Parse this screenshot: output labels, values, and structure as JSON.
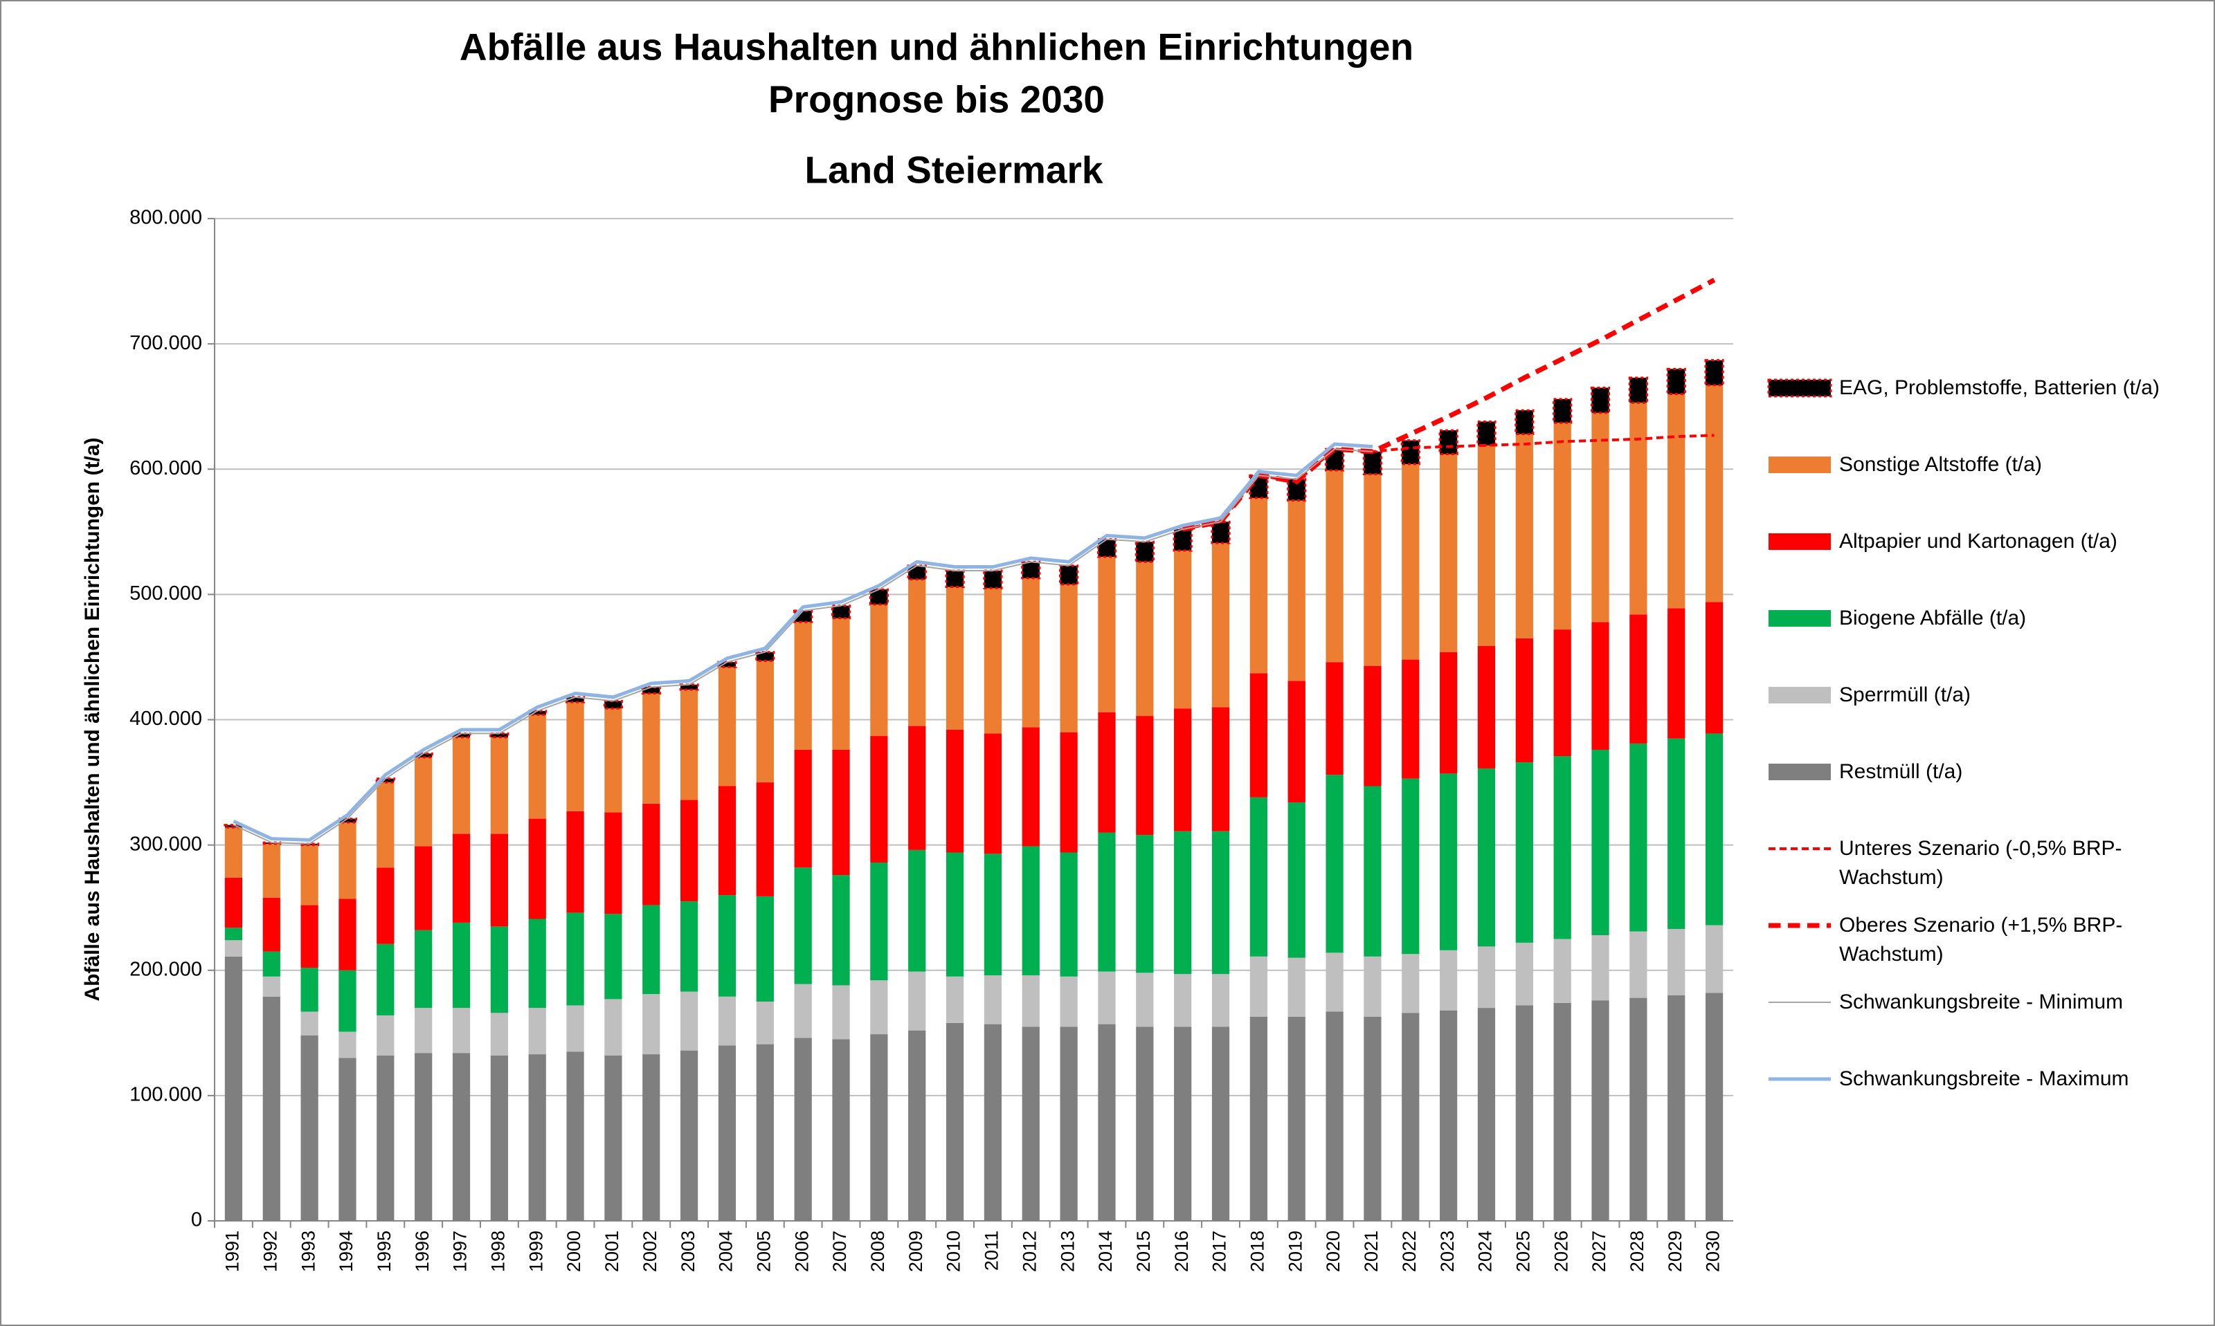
{
  "chart_data": {
    "type": "bar",
    "title": "Abfälle aus Haushalten und ähnlichen Einrichtungen",
    "subtitle": "Prognose bis 2030",
    "region": "Land Steiermark",
    "y_label": "Abfälle aus Haushalten und ähnlichen Einrichtungen (t/a)",
    "categories": [
      "1991",
      "1992",
      "1993",
      "1994",
      "1995",
      "1996",
      "1997",
      "1998",
      "1999",
      "2000",
      "2001",
      "2002",
      "2003",
      "2004",
      "2005",
      "2006",
      "2007",
      "2008",
      "2009",
      "2010",
      "2011",
      "2012",
      "2013",
      "2014",
      "2015",
      "2016",
      "2017",
      "2018",
      "2019",
      "2020",
      "2021",
      "2022",
      "2023",
      "2024",
      "2025",
      "2026",
      "2027",
      "2028",
      "2029",
      "2030"
    ],
    "ylim": [
      0,
      800000
    ],
    "yticks": [
      0,
      {
        "value": 100000,
        "label": "100.000"
      },
      {
        "value": 200000,
        "label": "200.000"
      },
      {
        "value": 300000,
        "label": "300.000"
      },
      {
        "value": 400000,
        "label": "400.000"
      },
      {
        "value": 500000,
        "label": "500.000"
      },
      {
        "value": 600000,
        "label": "600.000"
      },
      {
        "value": 700000,
        "label": "700.000"
      },
      {
        "value": 800000,
        "label": "800.000"
      }
    ],
    "grid": true,
    "legend": "right",
    "series": [
      {
        "name": "Restmüll (t/a)",
        "type": "bar",
        "color": "#7f7f7f",
        "values": [
          211000,
          179000,
          148000,
          130000,
          132000,
          134000,
          134000,
          132000,
          133000,
          135000,
          132000,
          133000,
          136000,
          140000,
          141000,
          146000,
          145000,
          149000,
          152000,
          158000,
          157000,
          155000,
          155000,
          157000,
          155000,
          155000,
          155000,
          163000,
          163000,
          167000,
          163000,
          166000,
          168000,
          170000,
          172000,
          174000,
          176000,
          178000,
          180000,
          182000
        ]
      },
      {
        "name": "Sperrmüll (t/a)",
        "type": "bar",
        "color": "#bfbfbf",
        "values": [
          13000,
          16000,
          19000,
          21000,
          32000,
          36000,
          36000,
          34000,
          37000,
          37000,
          45000,
          48000,
          47000,
          39000,
          34000,
          43000,
          43000,
          43000,
          47000,
          37000,
          39000,
          41000,
          40000,
          42000,
          43000,
          42000,
          42000,
          48000,
          47000,
          47000,
          48000,
          47000,
          48000,
          49000,
          50000,
          51000,
          52000,
          53000,
          53000,
          54000
        ]
      },
      {
        "name": "Biogene Abfälle (t/a)",
        "type": "bar",
        "color": "#00b050",
        "values": [
          10000,
          20000,
          35000,
          49000,
          57000,
          62000,
          68000,
          69000,
          71000,
          74000,
          68000,
          71000,
          72000,
          81000,
          84000,
          93000,
          88000,
          94000,
          97000,
          99000,
          97000,
          103000,
          99000,
          111000,
          110000,
          114000,
          114000,
          127000,
          124000,
          142000,
          136000,
          140000,
          141000,
          142000,
          144000,
          146000,
          148000,
          150000,
          152000,
          153000
        ]
      },
      {
        "name": "Altpapier und Kartonagen (t/a)",
        "type": "bar",
        "color": "#ff0000",
        "values": [
          40000,
          43000,
          50000,
          57000,
          61000,
          67000,
          71000,
          74000,
          80000,
          81000,
          81000,
          81000,
          81000,
          87000,
          91000,
          94000,
          100000,
          101000,
          99000,
          98000,
          96000,
          95000,
          96000,
          96000,
          95000,
          98000,
          99000,
          99000,
          97000,
          90000,
          96000,
          95000,
          97000,
          98000,
          99000,
          101000,
          102000,
          103000,
          104000,
          105000
        ]
      },
      {
        "name": "Sonstige Altstoffe (t/a)",
        "type": "bar",
        "color": "#ed7d31",
        "values": [
          40000,
          43000,
          48000,
          61000,
          68000,
          71000,
          77000,
          77000,
          83000,
          87000,
          83000,
          88000,
          88000,
          95000,
          97000,
          102000,
          105000,
          105000,
          117000,
          114000,
          116000,
          119000,
          118000,
          124000,
          123000,
          126000,
          131000,
          140000,
          144000,
          153000,
          153000,
          156000,
          158000,
          160000,
          163000,
          165000,
          167000,
          169000,
          171000,
          173000
        ]
      },
      {
        "name": "EAG, Problemstoffe, Batterien (t/a)",
        "type": "bar",
        "color": "#000000",
        "edge": "#ff0000",
        "values": [
          2000,
          1000,
          1000,
          3000,
          3000,
          3000,
          3000,
          3000,
          3000,
          4000,
          6000,
          5000,
          4000,
          4000,
          7000,
          9000,
          10000,
          12000,
          11000,
          13000,
          14000,
          13000,
          15000,
          14000,
          16000,
          17000,
          17000,
          18000,
          17000,
          17000,
          18000,
          19000,
          19000,
          19000,
          19000,
          19000,
          20000,
          20000,
          20000,
          20000
        ]
      },
      {
        "name": "Unteres Szenario (-0,5% BRP-Wachstum)",
        "type": "line",
        "color": "#ff0000",
        "dashed": true,
        "width": 4,
        "values": [
          null,
          null,
          null,
          null,
          null,
          null,
          null,
          null,
          null,
          null,
          null,
          null,
          null,
          null,
          null,
          null,
          null,
          null,
          null,
          null,
          null,
          null,
          null,
          null,
          null,
          552000,
          558000,
          595000,
          590000,
          616000,
          614000,
          617000,
          618000,
          619000,
          620000,
          622000,
          623000,
          624000,
          626000,
          627000
        ]
      },
      {
        "name": "Oberes Szenario (+1,5% BRP-Wachstum)",
        "type": "line",
        "color": "#ff0000",
        "dashed": true,
        "width": 7,
        "values": [
          null,
          null,
          null,
          null,
          null,
          null,
          null,
          null,
          null,
          null,
          null,
          null,
          null,
          null,
          null,
          null,
          null,
          null,
          null,
          null,
          null,
          null,
          null,
          null,
          null,
          552000,
          558000,
          595000,
          590000,
          616000,
          614000,
          628000,
          642000,
          657000,
          673000,
          688000,
          703000,
          719000,
          735000,
          751000
        ]
      },
      {
        "name": "Schwankungsbreite - Minimum",
        "type": "line",
        "color": "#a6a6a6",
        "dashed": false,
        "width": 2,
        "values": [
          316000,
          302000,
          301000,
          321000,
          353000,
          373000,
          389000,
          389000,
          407000,
          418000,
          415000,
          426000,
          428000,
          446000,
          454000,
          487000,
          491000,
          504000,
          523000,
          519000,
          519000,
          526000,
          523000,
          544000,
          542000,
          552000,
          558000,
          595000,
          592000,
          616000,
          614000,
          null,
          null,
          null,
          null,
          null,
          null,
          null,
          null,
          null
        ]
      },
      {
        "name": "Schwankungsbreite - Maximum",
        "type": "line",
        "color": "#8eb4e3",
        "dashed": false,
        "width": 5,
        "values": [
          319000,
          305000,
          304000,
          324000,
          356000,
          376000,
          392000,
          392000,
          410000,
          421000,
          418000,
          429000,
          431000,
          449000,
          457000,
          490000,
          494000,
          507000,
          526000,
          522000,
          522000,
          529000,
          526000,
          547000,
          545000,
          555000,
          561000,
          598000,
          595000,
          620000,
          618000,
          null,
          null,
          null,
          null,
          null,
          null,
          null,
          null,
          null
        ]
      }
    ]
  }
}
